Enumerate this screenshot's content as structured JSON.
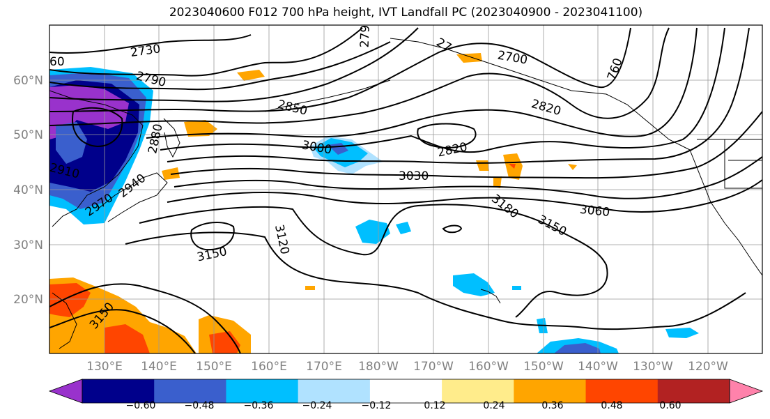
{
  "title": "2023040600 F012 700 hPa height, IVT Landfall PC (2023040900 - 2023041100)",
  "lat_labels": [
    "60°N",
    "50°N",
    "40°N",
    "30°N",
    "20°N"
  ],
  "lon_labels": [
    "130°E",
    "140°E",
    "150°E",
    "160°E",
    "170°E",
    "180°W",
    "170°W",
    "160°W",
    "150°W",
    "140°W",
    "130°W",
    "120°W"
  ],
  "contour_labels": [
    "2730",
    "2790",
    "2850",
    "2820",
    "2820",
    "2700",
    "3000",
    "3030",
    "3060",
    "3150",
    "3180",
    "3150",
    "3120",
    "2880",
    "2910",
    "2940",
    "2970",
    "3150",
    "60",
    "760",
    "279",
    "27"
  ],
  "colorbar": {
    "colors": [
      "#9932cc",
      "#00008b",
      "#3a5fcd",
      "#00bfff",
      "#b0e2ff",
      "#ffffff",
      "#ffec8b",
      "#ffa500",
      "#ff4500",
      "#b22222",
      "#ff82ab"
    ],
    "tick_labels": [
      "−0.60",
      "−0.48",
      "−0.36",
      "−0.24",
      "−0.12",
      "0.12",
      "0.24",
      "0.36",
      "0.48",
      "0.60"
    ]
  }
}
